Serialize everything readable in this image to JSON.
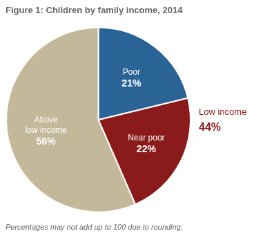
{
  "chart_data": {
    "type": "pie",
    "title": "Figure 1: Children by family income, 2014",
    "categories": [
      "Poor",
      "Near poor",
      "Above\nlow income"
    ],
    "values": [
      21,
      22,
      56
    ],
    "value_labels": [
      "21%",
      "22%",
      "56%"
    ],
    "colors": [
      "#2a6496",
      "#8b1a1a",
      "#c4b89a"
    ],
    "data_labels": true,
    "legend": false,
    "annotations": [
      {
        "text": "Low income",
        "color": "#8b1a1a"
      },
      {
        "text": "44%",
        "color": "#8b1a1a"
      }
    ],
    "footnote": "Percentages may not add up to 100 due to rounding."
  }
}
